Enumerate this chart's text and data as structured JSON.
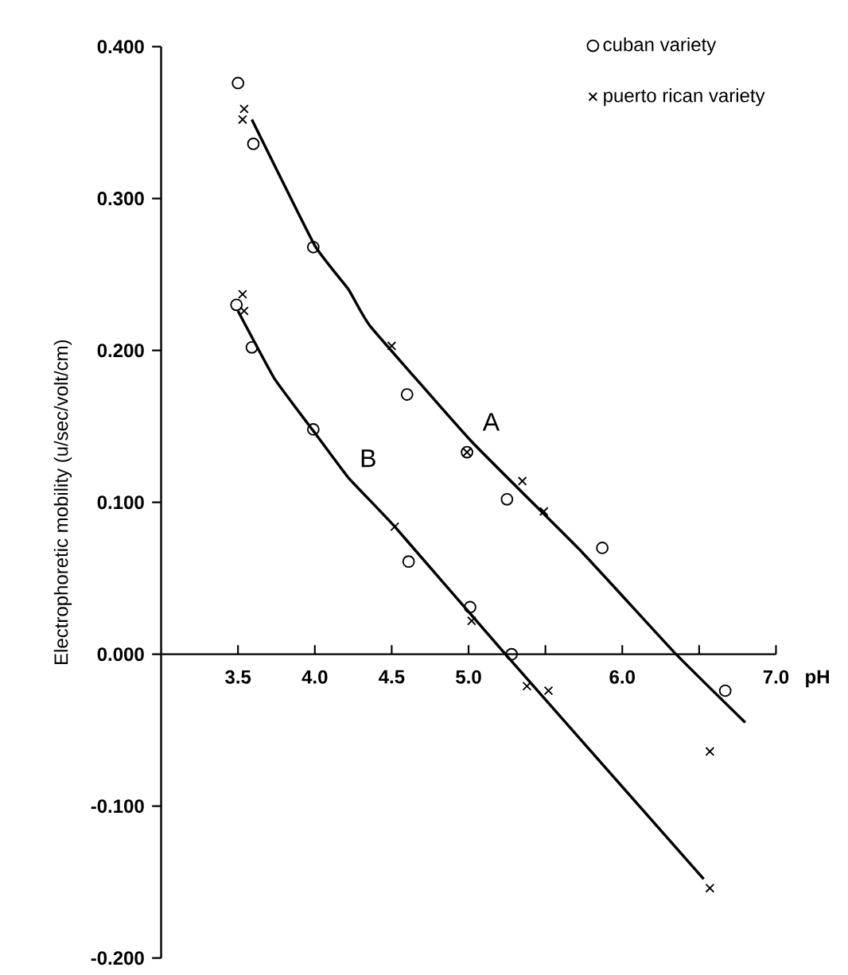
{
  "chart_data": {
    "type": "scatter",
    "xlabel": "pH",
    "ylabel": "Electrophoretic mobility (u/sec/volt/cm)",
    "xlim": [
      3.0,
      7.0
    ],
    "ylim": [
      -0.2,
      0.4
    ],
    "xticks": [
      3.5,
      {
        "value": 4.0,
        "label": "4.0"
      },
      4.5,
      {
        "value": 5.0,
        "label": "5.0"
      },
      {
        "value": 5.5,
        "label": null
      },
      {
        "value": 6.0,
        "label": "6.0"
      },
      {
        "value": 6.5,
        "label": null
      },
      {
        "value": 7.0,
        "label": "7.0"
      }
    ],
    "yticks": [
      {
        "value": -0.2,
        "label": "-0.200"
      },
      {
        "value": -0.1,
        "label": "-0.100"
      },
      {
        "value": 0.0,
        "label": "0.000"
      },
      {
        "value": 0.1,
        "label": "0.100"
      },
      {
        "value": 0.2,
        "label": "0.200"
      },
      {
        "value": 0.3,
        "label": "0.300"
      },
      {
        "value": 0.4,
        "label": "0.400"
      }
    ],
    "grid": false,
    "legend": "top right",
    "series": [
      {
        "name": "cuban variety",
        "color": "#000000",
        "marker": "circle",
        "x": [
          3.5,
          3.6,
          3.99,
          4.6,
          4.99,
          5.25,
          5.87,
          3.49,
          3.59,
          3.99,
          4.61,
          5.01,
          5.28,
          6.67
        ],
        "values": [
          0.376,
          0.336,
          0.268,
          0.171,
          0.133,
          0.102,
          0.07,
          0.23,
          0.202,
          0.148,
          0.061,
          0.031,
          0.0,
          -0.024
        ]
      },
      {
        "name": "puerto rican variety",
        "color": "#000000",
        "marker": "cross",
        "x": [
          3.54,
          3.53,
          4.5,
          4.99,
          5.35,
          5.49,
          6.57,
          3.53,
          3.54,
          4.52,
          5.02,
          5.38,
          5.52,
          6.57
        ],
        "values": [
          0.359,
          0.352,
          0.203,
          0.133,
          0.114,
          0.094,
          -0.064,
          0.237,
          0.226,
          0.084,
          0.022,
          -0.021,
          -0.024,
          -0.154
        ]
      },
      {
        "type": "line",
        "color": "#000000",
        "marker": "none",
        "x": [
          3.59,
          4.0,
          4.22,
          4.36,
          5.02,
          5.74,
          6.35,
          6.8
        ],
        "values": [
          0.352,
          0.269,
          0.24,
          0.216,
          0.14,
          0.067,
          0.0,
          -0.045
        ]
      },
      {
        "type": "line",
        "color": "#000000",
        "marker": "none",
        "x": [
          3.5,
          3.74,
          4.02,
          4.22,
          4.52,
          5.24,
          6.53
        ],
        "values": [
          0.226,
          0.181,
          0.143,
          0.116,
          0.084,
          0.0,
          -0.148
        ]
      }
    ],
    "annotations": [
      "A",
      "B"
    ]
  }
}
